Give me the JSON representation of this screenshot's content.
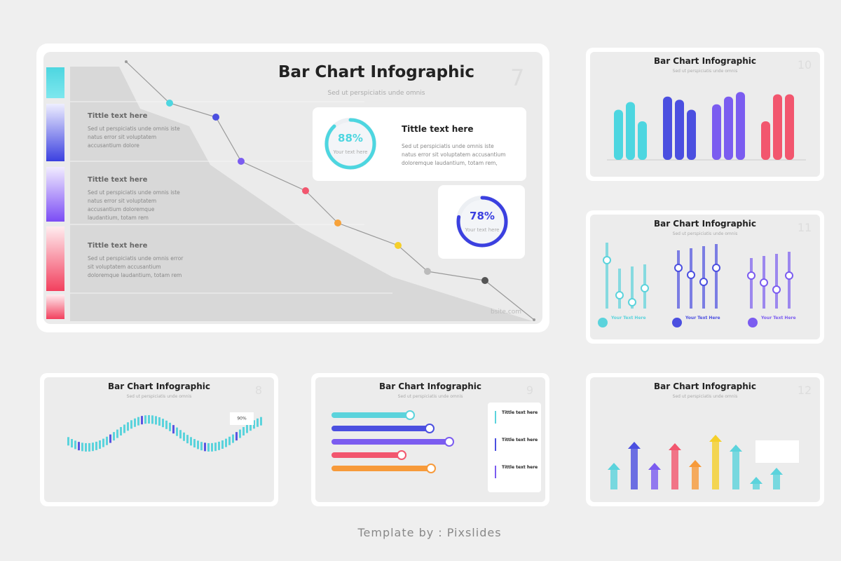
{
  "main_slide": {
    "title": "Bar Chart Infographic",
    "subtitle": "Sed ut perspiciatis unde omnis",
    "number": "7",
    "items": [
      {
        "title": "Tittle text here",
        "text": "Sed ut perspiciatis unde omnis iste natus error  sit voluptatem accusantium dolore"
      },
      {
        "title": "Tittle text here",
        "text": "Sed ut perspiciatis unde omnis iste natus error  sit voluptatem accusantium doloremque laudantium, totam rem"
      },
      {
        "title": "Tittle text here",
        "text": "Sed ut perspiciatis unde omnis error  sit voluptatem accusantium doloremque laudantium, totam rem"
      }
    ],
    "cards": [
      {
        "percent": {
          "value": 88,
          "label": "88%"
        },
        "caption": "Your text here",
        "title": "Tittle text here",
        "text": "Sed ut perspiciatis unde omnis iste natus error sit voluptatem accusantium doloremque laudantium, totam rem,"
      },
      {
        "percent": {
          "value": 78,
          "label": "78%"
        },
        "caption": "Your text here"
      }
    ],
    "footer": "bsite.com"
  },
  "slides": [
    {
      "number": "8",
      "title": "Bar Chart Infographic",
      "subtitle": "Sed ut perspiciatis unde omnis",
      "note": "90%"
    },
    {
      "number": "9",
      "title": "Bar Chart Infographic",
      "subtitle": "Sed ut perspiciatis unde omnis",
      "items": [
        "Tittle text here",
        "Tittle text here",
        "Tittle text here"
      ]
    },
    {
      "number": "10",
      "title": "Bar Chart Infographic",
      "subtitle": "Sed ut perspiciatis unde omnis",
      "chart": {
        "type": "bar",
        "ylim": [
          0,
          100
        ],
        "groups": [
          {
            "color": "#4dd6e0",
            "values": [
              65,
              75,
              50
            ]
          },
          {
            "color": "#4b4fe0",
            "values": [
              82,
              78,
              65
            ]
          },
          {
            "color": "#7b5cf0",
            "values": [
              72,
              82,
              88
            ]
          },
          {
            "color": "#f2566e",
            "values": [
              50,
              85,
              85
            ]
          }
        ]
      }
    },
    {
      "number": "11",
      "title": "Bar Chart Infographic",
      "subtitle": "Sed ut perspiciatis unde omnis",
      "items": [
        "Your Text Here",
        "Your Text Here",
        "Your Text Here"
      ]
    },
    {
      "number": "12",
      "title": "Bar Chart Infographic",
      "subtitle": "Sed ut perspiciatis unde omnis"
    }
  ],
  "credit": "Template by : Pixslides"
}
